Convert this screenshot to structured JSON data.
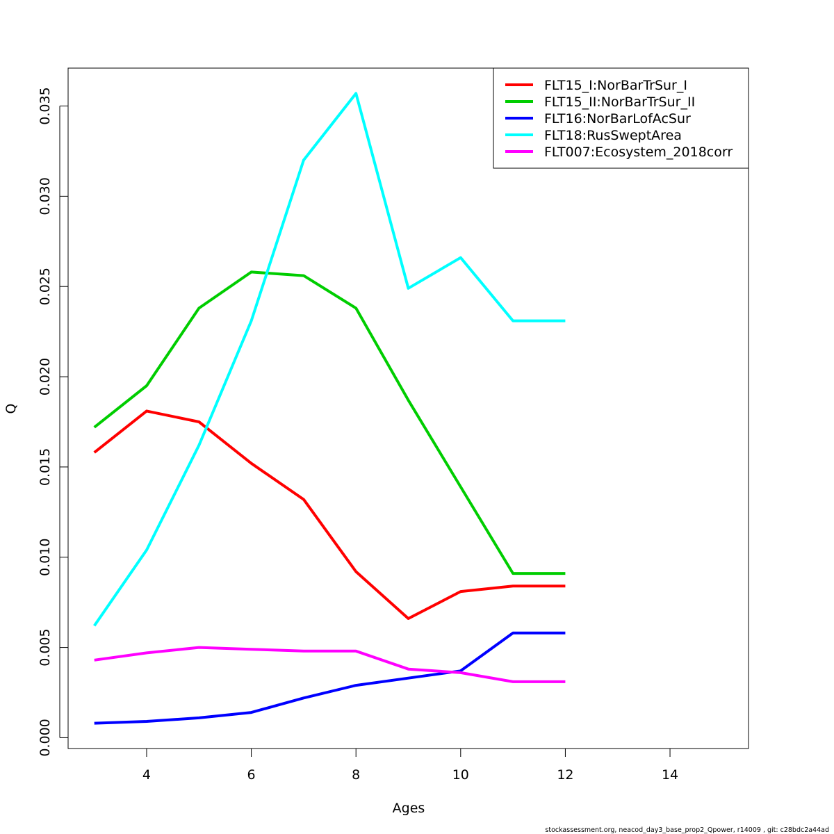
{
  "chart_data": {
    "type": "line",
    "xlabel": "Ages",
    "ylabel": "Q",
    "xlim": [
      2.5,
      15.5
    ],
    "ylim": [
      -0.0006,
      0.0371
    ],
    "x_ticks": [
      4,
      6,
      8,
      10,
      12,
      14
    ],
    "x_tick_labels": [
      "4",
      "6",
      "8",
      "10",
      "12",
      "14"
    ],
    "y_ticks": [
      0.0,
      0.005,
      0.01,
      0.015,
      0.02,
      0.025,
      0.03,
      0.035
    ],
    "y_tick_labels": [
      "0.000",
      "0.005",
      "0.010",
      "0.015",
      "0.020",
      "0.025",
      "0.030",
      "0.035"
    ],
    "grid": false,
    "legend_position": "top-right",
    "x": [
      3,
      4,
      5,
      6,
      7,
      8,
      9,
      10,
      11,
      12
    ],
    "series": [
      {
        "name": "FLT15_I:NorBarTrSur_I",
        "color": "#ff0000",
        "values": [
          0.0158,
          0.0181,
          0.0175,
          0.0152,
          0.0132,
          0.0092,
          0.0066,
          0.0081,
          0.0084,
          0.0084
        ]
      },
      {
        "name": "FLT15_II:NorBarTrSur_II",
        "color": "#00cd00",
        "values": [
          0.0172,
          0.0195,
          0.0238,
          0.0258,
          0.0256,
          0.0238,
          0.0187,
          0.0139,
          0.0091,
          0.0091
        ]
      },
      {
        "name": "FLT16:NorBarLofAcSur",
        "color": "#0000ff",
        "values": [
          0.0008,
          0.0009,
          0.0011,
          0.0014,
          0.0022,
          0.0029,
          0.0033,
          0.0037,
          0.0058,
          0.0058
        ]
      },
      {
        "name": "FLT18:RusSweptArea",
        "color": "#00ffff",
        "values": [
          0.0062,
          0.0104,
          0.0162,
          0.0231,
          0.032,
          0.0357,
          0.0249,
          0.0266,
          0.0231,
          0.0231
        ]
      },
      {
        "name": "FLT007:Ecosystem_2018corr",
        "color": "#ff00ff",
        "values": [
          0.0043,
          0.0047,
          0.005,
          0.0049,
          0.0048,
          0.0048,
          0.0038,
          0.0036,
          0.0031,
          0.0031
        ]
      }
    ]
  },
  "footnote": "stockassessment.org, neacod_day3_base_prop2_Qpower, r14009 , git: c28bdc2a44ad"
}
